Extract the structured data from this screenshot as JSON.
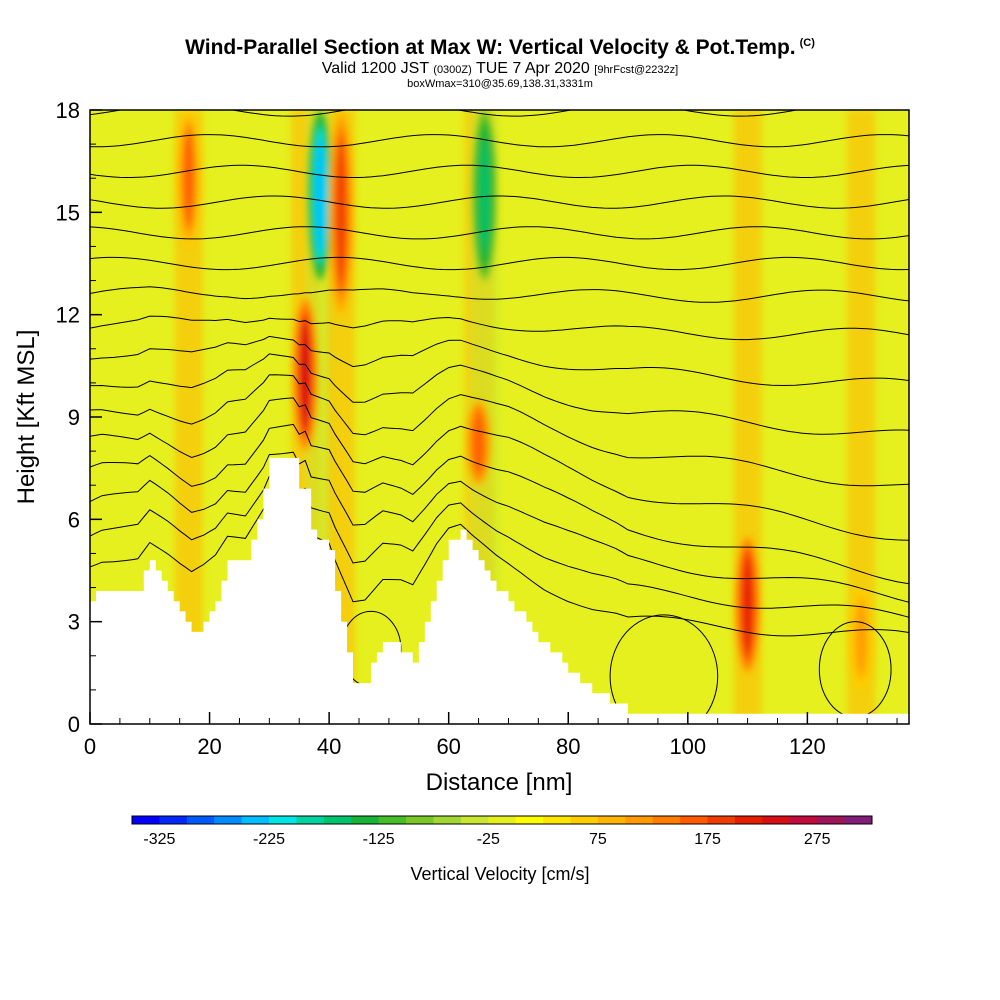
{
  "header": {
    "title": "Wind-Parallel Section at Max W: Vertical Velocity & Pot.Temp.",
    "title_mark": "(C)",
    "valid_prefix": "Valid 1200 JST",
    "valid_utc": "(0300Z)",
    "valid_date": "TUE 7 Apr 2020",
    "forecast": "[9hrFcst@2232z]",
    "box_info": "boxWmax=310@35.69,138.31,3331m"
  },
  "chart_data": {
    "type": "heatmap",
    "title": "Wind-Parallel Section at Max W: Vertical Velocity & Pot.Temp.",
    "xlabel": "Distance [nm]",
    "ylabel": "Height [Kft MSL]",
    "xlim": [
      0,
      137
    ],
    "ylim": [
      0,
      18
    ],
    "xticks": [
      0,
      20,
      40,
      60,
      80,
      100,
      120
    ],
    "yticks": [
      0,
      3,
      6,
      9,
      12,
      15,
      18
    ],
    "terrain_kft": [
      [
        0,
        3.6
      ],
      [
        2,
        3.9
      ],
      [
        8,
        3.9
      ],
      [
        10,
        4.8
      ],
      [
        13,
        3.9
      ],
      [
        15,
        3.2
      ],
      [
        17,
        2.6
      ],
      [
        19,
        3.0
      ],
      [
        21,
        3.6
      ],
      [
        23,
        4.8
      ],
      [
        26,
        4.8
      ],
      [
        29,
        6.8
      ],
      [
        30,
        7.8
      ],
      [
        34,
        7.8
      ],
      [
        35,
        6.8
      ],
      [
        36,
        7.0
      ],
      [
        37,
        5.6
      ],
      [
        40,
        5.1
      ],
      [
        41,
        4.0
      ],
      [
        43,
        2.2
      ],
      [
        44,
        1.3
      ],
      [
        46,
        1.3
      ],
      [
        49,
        2.4
      ],
      [
        52,
        2.2
      ],
      [
        54,
        1.8
      ],
      [
        56,
        3.0
      ],
      [
        58,
        4.3
      ],
      [
        60,
        5.3
      ],
      [
        62,
        5.6
      ],
      [
        64,
        5.0
      ],
      [
        68,
        4.0
      ],
      [
        72,
        3.2
      ],
      [
        76,
        2.3
      ],
      [
        80,
        1.6
      ],
      [
        84,
        1.0
      ],
      [
        88,
        0.6
      ],
      [
        90,
        0.3
      ],
      [
        137,
        0.3
      ]
    ],
    "velocity_cores": [
      {
        "x": 36,
        "height_range": [
          8.0,
          12.5
        ],
        "value": 230
      },
      {
        "x": 38.5,
        "height_range": [
          13.0,
          18.0
        ],
        "value": -240
      },
      {
        "x": 42,
        "height_range": [
          12.0,
          18.0
        ],
        "value": 190
      },
      {
        "x": 16.5,
        "height_range": [
          14.0,
          18.0
        ],
        "value": 150
      },
      {
        "x": 65,
        "height_range": [
          7.0,
          9.5
        ],
        "value": 170
      },
      {
        "x": 66,
        "height_range": [
          13.0,
          18.0
        ],
        "value": -170
      },
      {
        "x": 110,
        "height_range": [
          1.5,
          5.5
        ],
        "value": 210
      },
      {
        "x": 129,
        "height_range": [
          1.0,
          4.0
        ],
        "value": 110
      }
    ],
    "contour_field": "Potential temperature",
    "colorbar": {
      "label": "Vertical Velocity [cm/s]",
      "tick_labels": [
        "-325",
        "-225",
        "-125",
        "-25",
        "75",
        "175",
        "275"
      ],
      "min": -350,
      "max": 325,
      "step": 25,
      "colors": [
        "#0000ff",
        "#0028ff",
        "#005aff",
        "#008cff",
        "#00beff",
        "#00e6e6",
        "#00d2a0",
        "#00c36e",
        "#19b437",
        "#46be28",
        "#78c828",
        "#a0d732",
        "#c8e632",
        "#e6f01e",
        "#ffff00",
        "#ffe600",
        "#ffcd00",
        "#ffb400",
        "#ff9b00",
        "#ff7d00",
        "#ff5a00",
        "#f03c00",
        "#e61e00",
        "#d70f14",
        "#c30a3c",
        "#a0145a",
        "#821e78"
      ]
    }
  },
  "colors": {
    "background_field": "#e6f01e",
    "terrain": "#ffffff",
    "contour": "#000000"
  }
}
